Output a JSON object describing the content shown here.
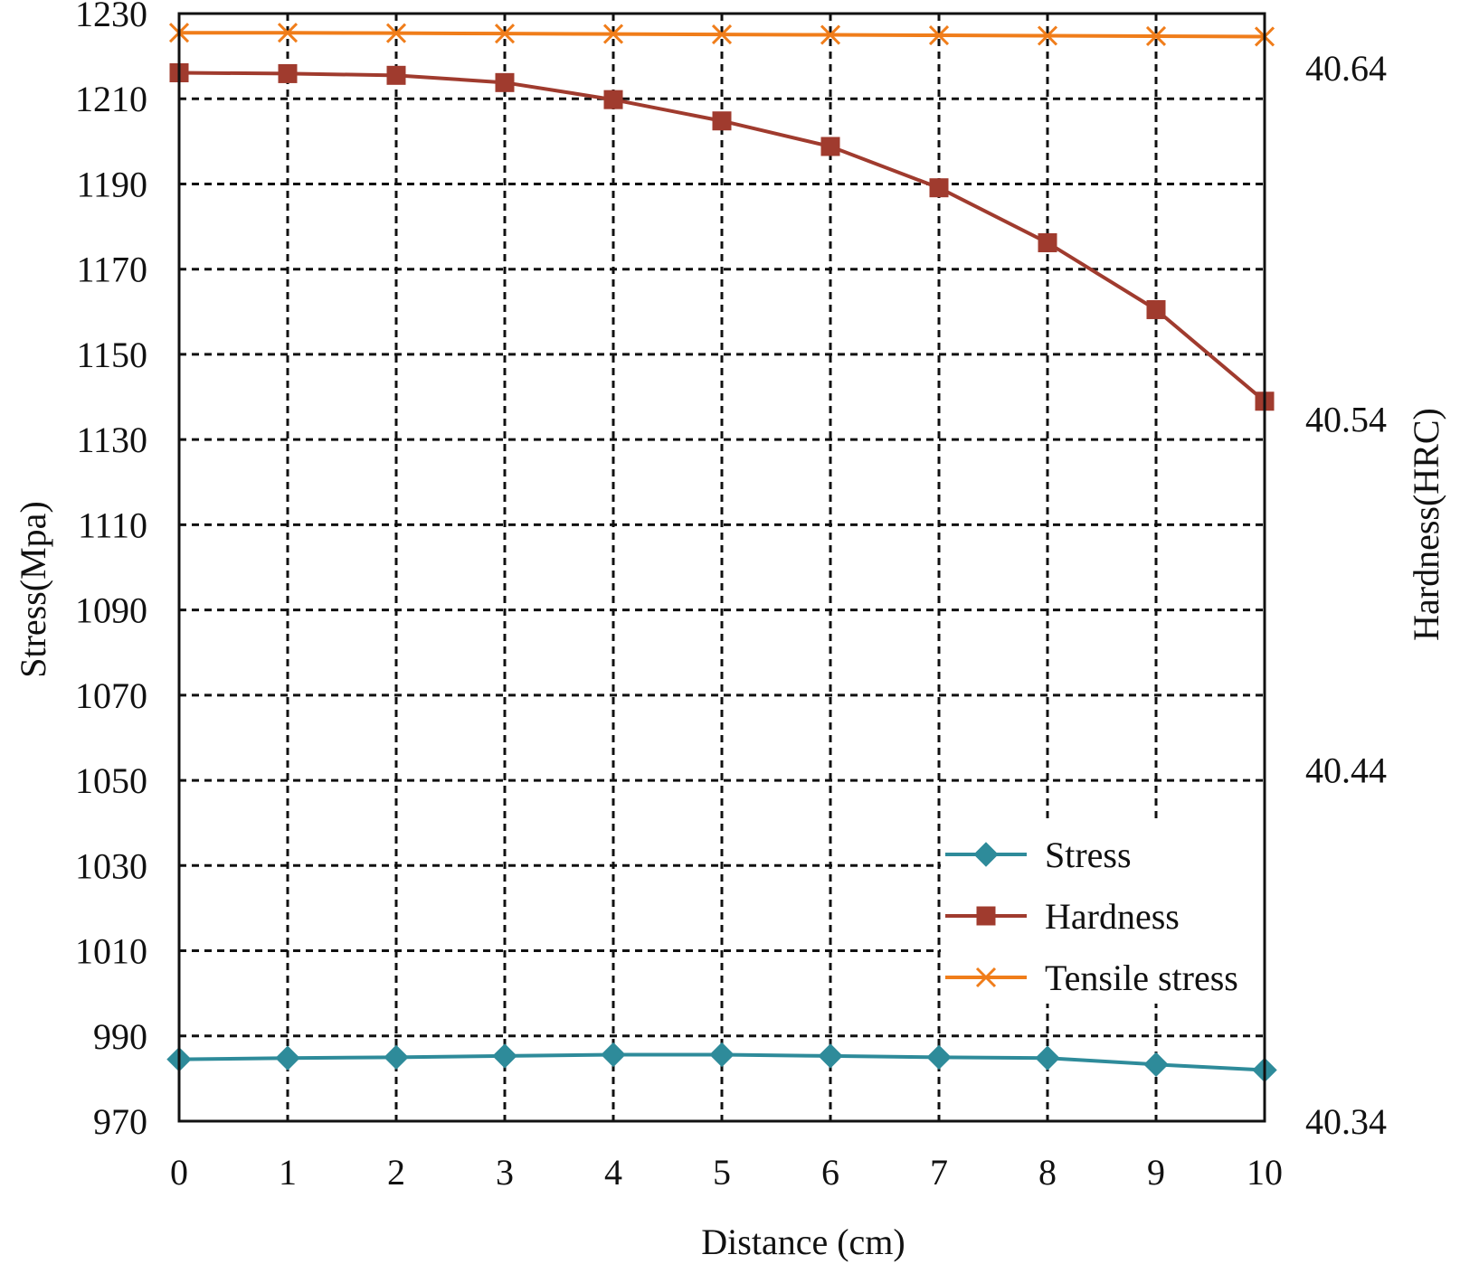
{
  "chart_data": {
    "type": "line",
    "xlabel": "Distance (cm)",
    "ylabel": "Stress(Mpa)",
    "y2label": "Hardness(HRC)",
    "x": [
      0,
      1,
      2,
      3,
      4,
      5,
      6,
      7,
      8,
      9,
      10
    ],
    "x_ticks": [
      "0",
      "1",
      "2",
      "3",
      "4",
      "5",
      "6",
      "7",
      "8",
      "9",
      "10"
    ],
    "xlim": [
      0,
      10
    ],
    "ylim": [
      970,
      1230
    ],
    "y_ticks": [
      "970",
      "990",
      "1010",
      "1030",
      "1050",
      "1070",
      "1090",
      "1110",
      "1130",
      "1150",
      "1170",
      "1190",
      "1210",
      "1230"
    ],
    "y2_ticks": [
      "40.34",
      "40.44",
      "40.54",
      "40.64"
    ],
    "grid": true,
    "legend_position": "bottom-right",
    "series": [
      {
        "name": "Stress",
        "color": "#2e8b9a",
        "marker": "diamond",
        "axis": "left",
        "values": [
          984.5,
          984.8,
          985.0,
          985.3,
          985.6,
          985.6,
          985.3,
          985.0,
          984.8,
          983.3,
          982.0
        ]
      },
      {
        "name": "Hardness",
        "color": "#a03b2e",
        "marker": "square",
        "axis": "left",
        "values": [
          1216.1,
          1215.9,
          1215.5,
          1213.8,
          1209.8,
          1204.8,
          1198.8,
          1189.1,
          1176.2,
          1160.5,
          1139.0
        ]
      },
      {
        "name": "Tensile stress",
        "color": "#f07d1a",
        "marker": "x",
        "axis": "left",
        "values": [
          1225.5,
          1225.5,
          1225.4,
          1225.3,
          1225.2,
          1225.1,
          1225.0,
          1224.9,
          1224.8,
          1224.7,
          1224.6
        ]
      }
    ]
  }
}
